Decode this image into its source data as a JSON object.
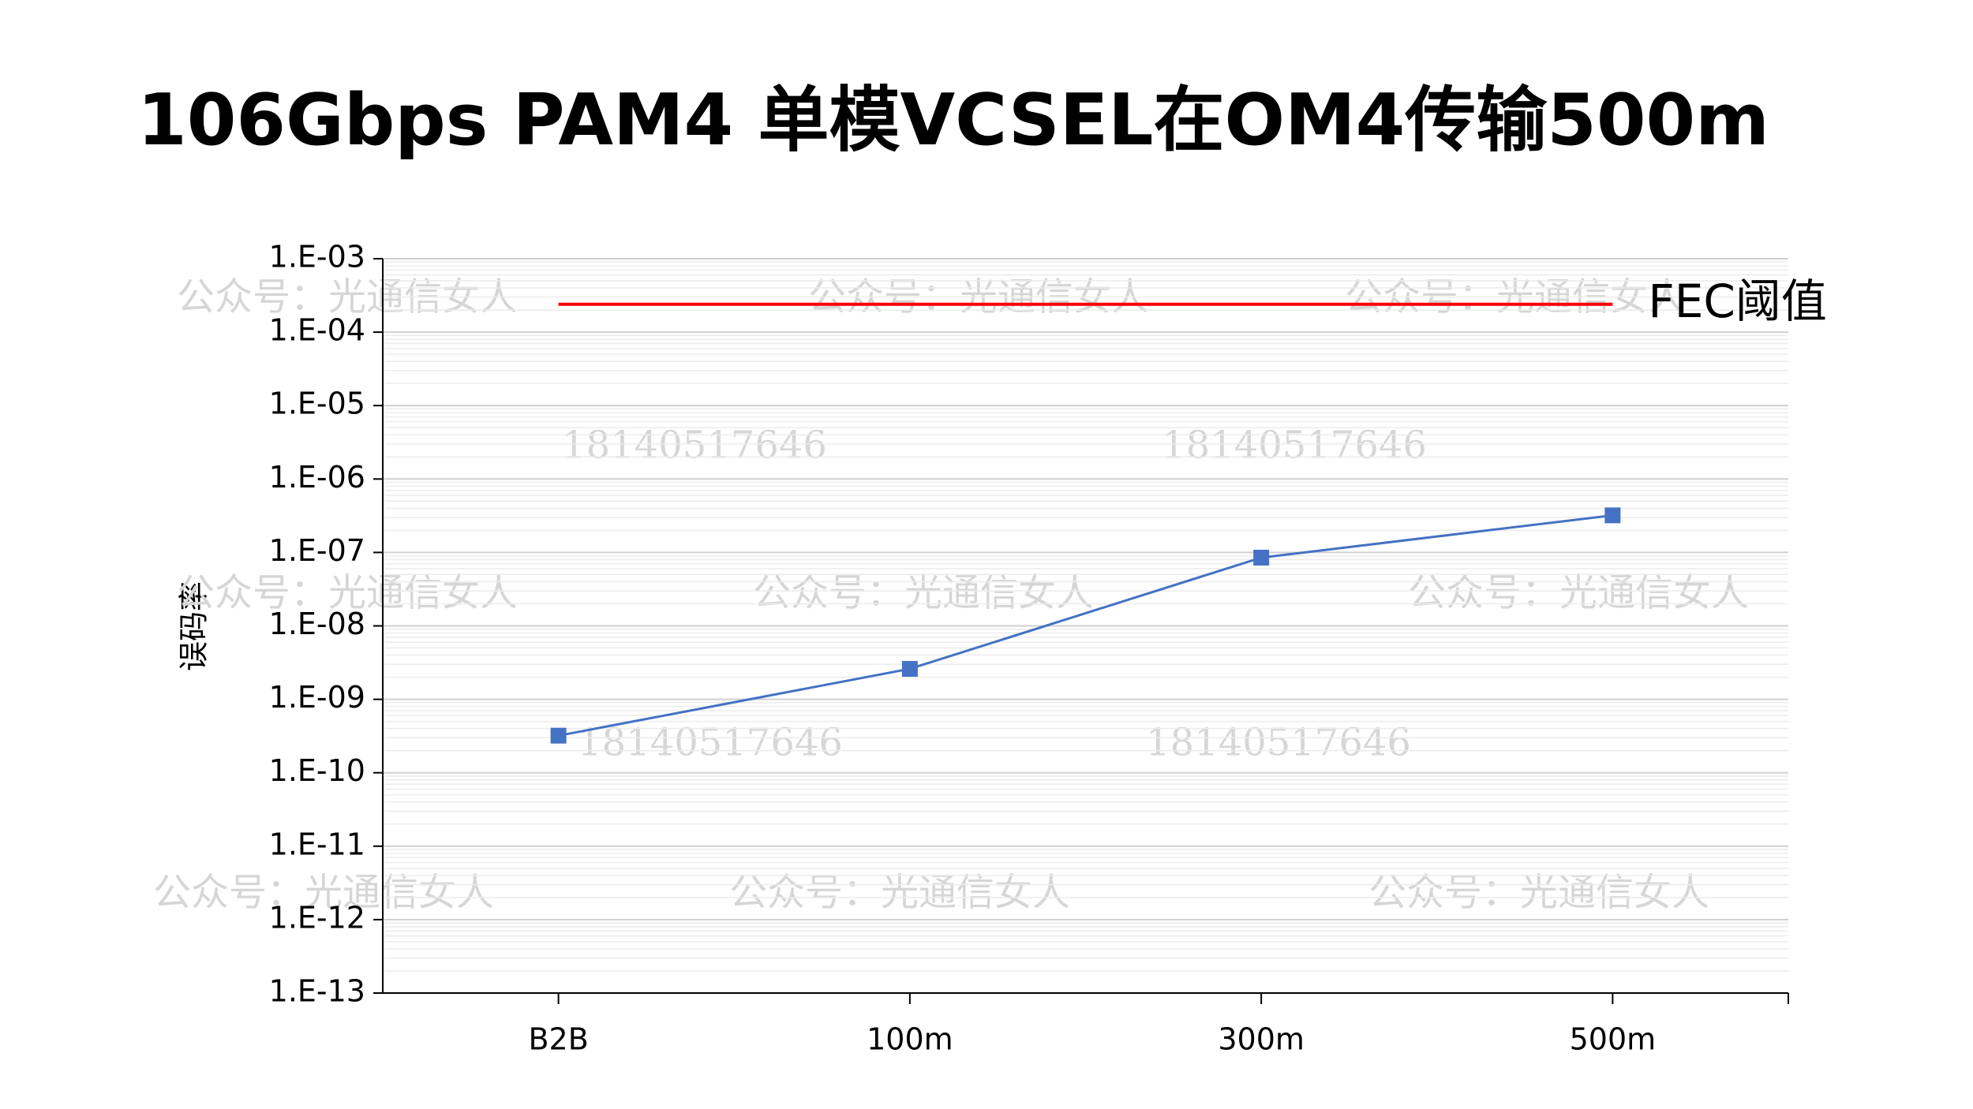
{
  "chart_data": {
    "type": "line",
    "title": "106Gbps PAM4 单模VCSEL在OM4传输500m",
    "y_label": "误码率",
    "categories": [
      "B2B",
      "100m",
      "300m",
      "500m"
    ],
    "series": [
      {
        "name": "FEC阈值",
        "color": "#ff0000",
        "values": [
          0.00024,
          0.00024,
          0.00024,
          0.00024
        ]
      },
      {
        "color": "#4472c4",
        "values": [
          3.2e-10,
          2.6e-09,
          8.5e-08,
          3.2e-07
        ]
      }
    ],
    "ylim": [
      1e-13,
      0.001
    ],
    "log_y": true,
    "grid": true,
    "yticks": [
      {
        "value": 1e-13,
        "label": "1.E-13"
      },
      {
        "value": 1e-12,
        "label": "1.E-12"
      },
      {
        "value": 1e-11,
        "label": "1.E-11"
      },
      {
        "value": 1e-10,
        "label": "1.E-10"
      },
      {
        "value": 1e-09,
        "label": "1.E-09"
      },
      {
        "value": 1e-08,
        "label": "1.E-08"
      },
      {
        "value": 1e-07,
        "label": "1.E-07"
      },
      {
        "value": 1e-06,
        "label": "1.E-06"
      },
      {
        "value": 1e-05,
        "label": "1.E-05"
      },
      {
        "value": 0.0001,
        "label": "1.E-04"
      },
      {
        "value": 0.001,
        "label": "1.E-03"
      }
    ],
    "watermarks": [
      "公众号：光通信女人",
      "18140517646"
    ]
  }
}
